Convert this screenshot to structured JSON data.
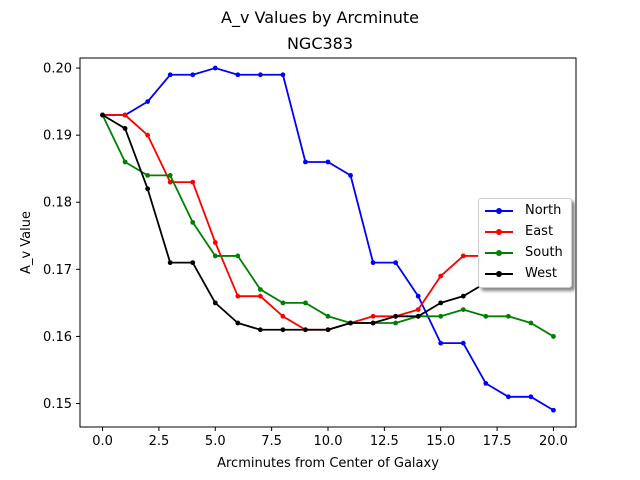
{
  "chart_data": {
    "type": "line",
    "title": "A_v Values by Arcminute",
    "subtitle": "NGC383",
    "xlabel": "Arcminutes from Center of Galaxy",
    "ylabel": "A_v Value",
    "xlim": [
      -1.0,
      21.0
    ],
    "ylim": [
      0.1465,
      0.2015
    ],
    "xticks": [
      0.0,
      2.5,
      5.0,
      7.5,
      10.0,
      12.5,
      15.0,
      17.5,
      20.0
    ],
    "xtick_labels": [
      "0.0",
      "2.5",
      "5.0",
      "7.5",
      "10.0",
      "12.5",
      "15.0",
      "17.5",
      "20.0"
    ],
    "yticks": [
      0.15,
      0.16,
      0.17,
      0.18,
      0.19,
      0.2
    ],
    "ytick_labels": [
      "0.15",
      "0.16",
      "0.17",
      "0.18",
      "0.19",
      "0.20"
    ],
    "grid": false,
    "legend_position": "center-right",
    "x": [
      0,
      1,
      2,
      3,
      4,
      5,
      6,
      7,
      8,
      9,
      10,
      11,
      12,
      13,
      14,
      15,
      16,
      17,
      18,
      19,
      20
    ],
    "series": [
      {
        "name": "North",
        "color": "#0000ff",
        "values": [
          0.193,
          0.193,
          0.195,
          0.199,
          0.199,
          0.2,
          0.199,
          0.199,
          0.199,
          0.186,
          0.186,
          0.184,
          0.171,
          0.171,
          0.166,
          0.159,
          0.159,
          0.153,
          0.151,
          0.151,
          0.149
        ]
      },
      {
        "name": "East",
        "color": "#ff0000",
        "values": [
          0.193,
          0.193,
          0.19,
          0.183,
          0.183,
          0.174,
          0.166,
          0.166,
          0.163,
          0.161,
          0.161,
          0.162,
          0.163,
          0.163,
          0.164,
          0.169,
          0.172,
          0.172,
          0.172,
          0.172,
          0.172
        ]
      },
      {
        "name": "South",
        "color": "#008000",
        "values": [
          0.193,
          0.186,
          0.184,
          0.184,
          0.177,
          0.172,
          0.172,
          0.167,
          0.165,
          0.165,
          0.163,
          0.162,
          0.162,
          0.162,
          0.163,
          0.163,
          0.164,
          0.163,
          0.163,
          0.162,
          0.16
        ]
      },
      {
        "name": "West",
        "color": "#000000",
        "values": [
          0.193,
          0.191,
          0.182,
          0.171,
          0.171,
          0.165,
          0.162,
          0.161,
          0.161,
          0.161,
          0.161,
          0.162,
          0.162,
          0.163,
          0.163,
          0.165,
          0.166,
          0.168,
          0.169,
          0.17,
          0.171
        ]
      }
    ]
  }
}
